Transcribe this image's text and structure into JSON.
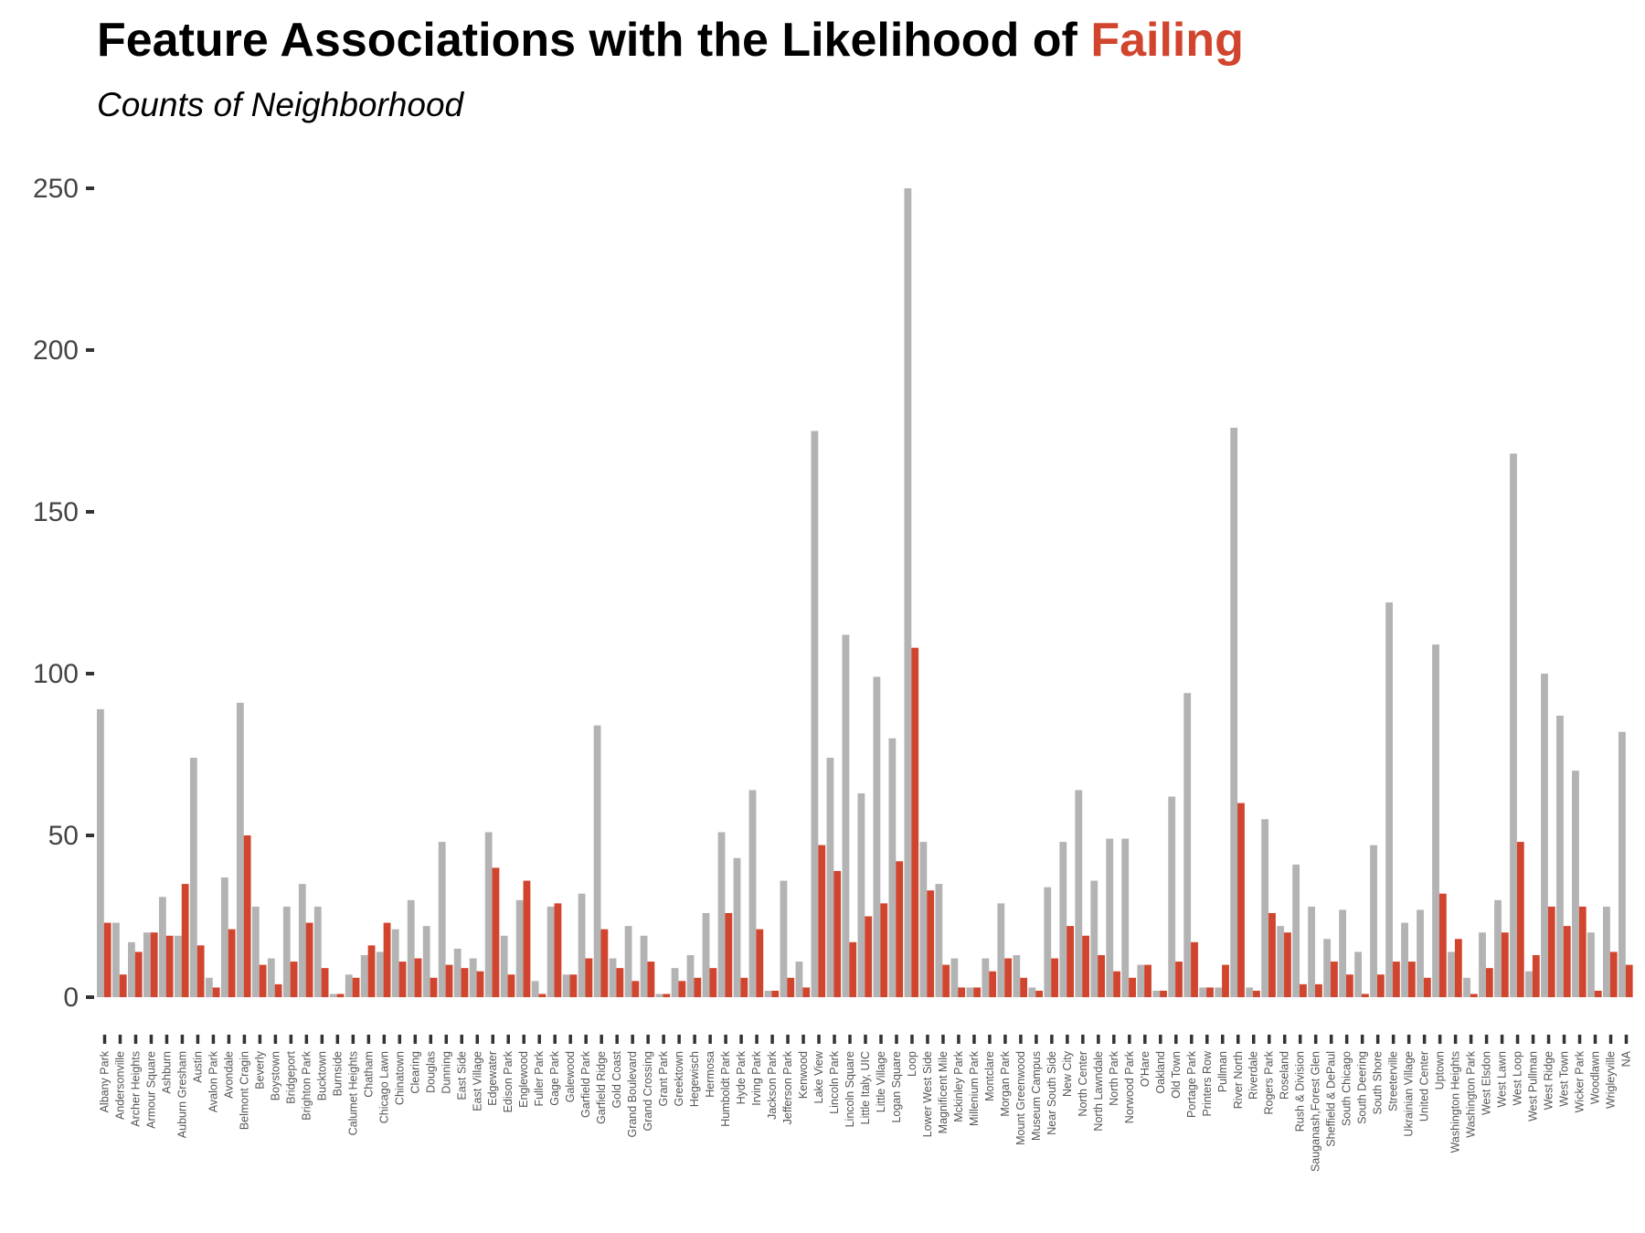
{
  "title": {
    "main": "Feature Associations with the Likelihood of ",
    "highlight": "Failing"
  },
  "subtitle": "Counts of Neighborhood",
  "colors": {
    "passing": "#b3b3b3",
    "failing": "#d1452e",
    "axis_text": "#444444"
  },
  "chart_data": {
    "type": "bar",
    "title": "Feature Associations with the Likelihood of Failing",
    "subtitle": "Counts of Neighborhood",
    "xlabel": "",
    "ylabel": "",
    "ylim": [
      0,
      250
    ],
    "yticks": [
      0,
      50,
      100,
      150,
      200,
      250
    ],
    "grid": false,
    "legend": "none",
    "categories": [
      "Albany Park",
      "Andersonville",
      "Archer Heights",
      "Armour Square",
      "Ashburn",
      "Auburn Gresham",
      "Austin",
      "Avalon Park",
      "Avondale",
      "Belmont Cragin",
      "Beverly",
      "Boystown",
      "Bridgeport",
      "Brighton Park",
      "Bucktown",
      "Burnside",
      "Calumet Heights",
      "Chatham",
      "Chicago Lawn",
      "Chinatown",
      "Clearing",
      "Douglas",
      "Dunning",
      "East Side",
      "East Village",
      "Edgewater",
      "Edison Park",
      "Englewood",
      "Fuller Park",
      "Gage Park",
      "Galewood",
      "Garfield Park",
      "Garfield Ridge",
      "Gold Coast",
      "Grand Boulevard",
      "Grand Crossing",
      "Grant Park",
      "Greektown",
      "Hegewisch",
      "Hermosa",
      "Humboldt Park",
      "Hyde Park",
      "Irving Park",
      "Jackson Park",
      "Jefferson Park",
      "Kenwood",
      "Lake View",
      "Lincoln Park",
      "Lincoln Square",
      "Little Italy, UIC",
      "Little Village",
      "Logan Square",
      "Loop",
      "Lower West Side",
      "Magnificent Mile",
      "Mckinley Park",
      "Millenium Park",
      "Montclare",
      "Morgan Park",
      "Mount Greenwood",
      "Museum Campus",
      "Near South Side",
      "New City",
      "North Center",
      "North Lawndale",
      "North Park",
      "Norwood Park",
      "O'Hare",
      "Oakland",
      "Old Town",
      "Portage Park",
      "Printers Row",
      "Pullman",
      "River North",
      "Riverdale",
      "Rogers Park",
      "Roseland",
      "Rush & Division",
      "Sauganash,Forest Glen",
      "Sheffield & DePaul",
      "South Chicago",
      "South Deering",
      "South Shore",
      "Streeterville",
      "Ukrainian Village",
      "United Center",
      "Uptown",
      "Washington Heights",
      "Washington Park",
      "West Elsdon",
      "West Lawn",
      "West Loop",
      "West Pullman",
      "West Ridge",
      "West Town",
      "Wicker Park",
      "Woodlawn",
      "Wrigleyville",
      "NA"
    ],
    "series": [
      {
        "values": [
          89,
          23,
          17,
          20,
          31,
          19,
          74,
          6,
          37,
          91,
          28,
          12,
          28,
          35,
          28,
          1,
          7,
          13,
          14,
          21,
          30,
          22,
          48,
          15,
          12,
          51,
          19,
          30,
          5,
          28,
          7,
          32,
          84,
          12,
          22,
          19,
          1,
          9,
          13,
          26,
          51,
          43,
          64,
          2,
          36,
          11,
          175,
          74,
          112,
          63,
          99,
          80,
          250,
          48,
          35,
          12,
          3,
          12,
          29,
          13,
          3,
          34,
          48,
          64,
          36,
          49,
          49,
          10,
          2,
          62,
          94,
          3,
          3,
          176,
          3,
          55,
          22,
          41,
          28,
          18,
          27,
          14,
          47,
          122,
          23,
          27,
          109,
          14,
          6,
          20,
          30,
          168,
          8,
          100,
          87,
          70,
          20,
          28,
          82
        ]
      },
      {
        "values": [
          23,
          7,
          14,
          20,
          19,
          35,
          16,
          3,
          21,
          50,
          10,
          4,
          11,
          23,
          9,
          1,
          6,
          16,
          23,
          11,
          12,
          6,
          10,
          9,
          8,
          40,
          7,
          36,
          1,
          29,
          7,
          12,
          21,
          9,
          5,
          11,
          1,
          5,
          6,
          9,
          26,
          6,
          21,
          2,
          6,
          3,
          47,
          39,
          17,
          25,
          29,
          42,
          108,
          33,
          10,
          3,
          3,
          8,
          12,
          6,
          2,
          12,
          22,
          19,
          13,
          8,
          6,
          10,
          2,
          11,
          17,
          3,
          10,
          60,
          2,
          26,
          20,
          4,
          4,
          11,
          7,
          1,
          7,
          11,
          11,
          6,
          32,
          18,
          1,
          9,
          20,
          48,
          13,
          28,
          22,
          28,
          2,
          14,
          10
        ]
      }
    ]
  }
}
